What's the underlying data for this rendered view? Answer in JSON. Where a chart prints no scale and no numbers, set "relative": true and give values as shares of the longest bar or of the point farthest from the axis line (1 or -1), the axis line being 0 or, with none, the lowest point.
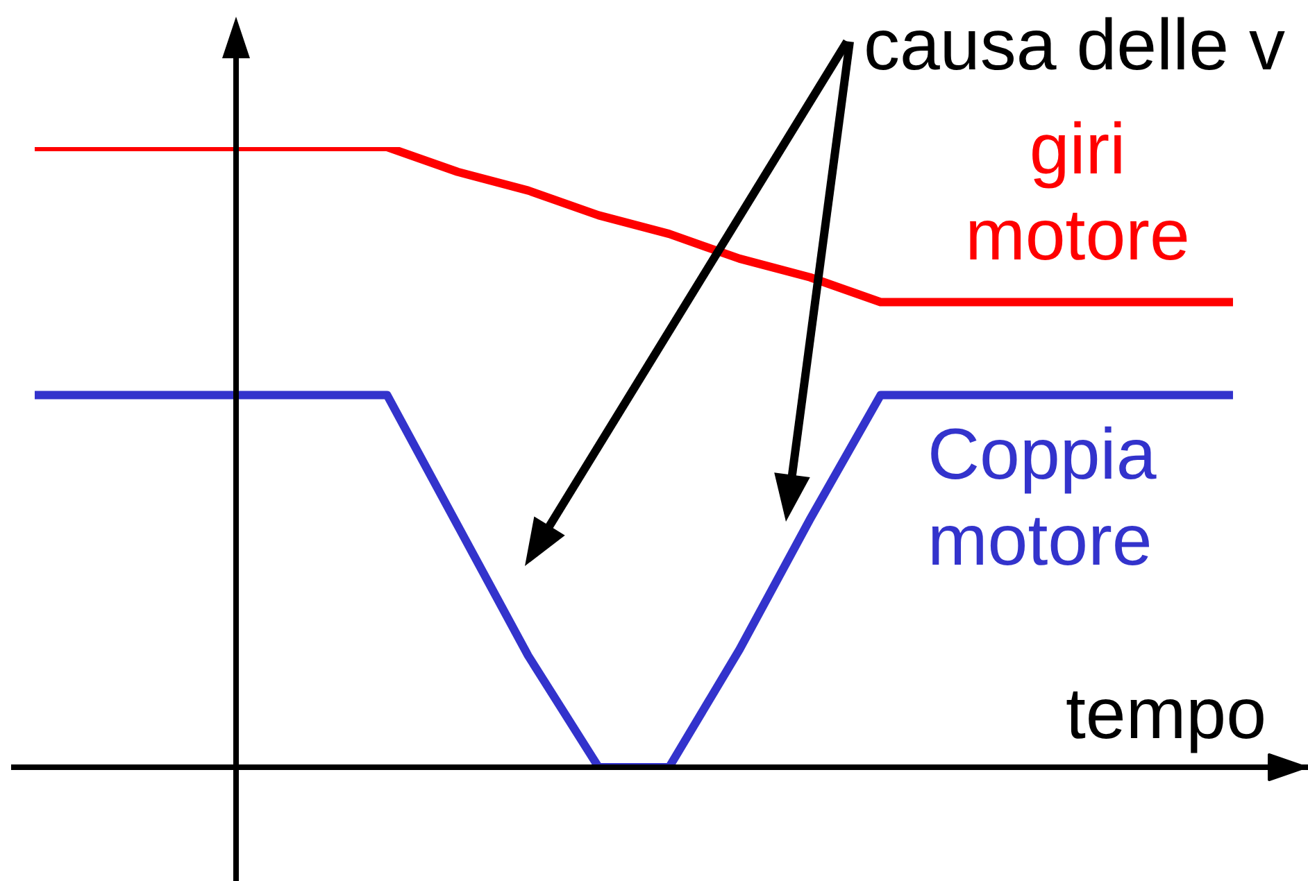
{
  "chart_data": {
    "type": "line",
    "xlabel": "tempo",
    "annotations": [
      "causa delle v"
    ],
    "relative": true,
    "line_style": "solid",
    "categories": [
      null,
      null,
      null,
      null,
      null,
      null,
      null,
      null,
      null,
      null,
      null,
      null,
      null,
      null,
      null,
      null,
      null,
      null
    ],
    "series": [
      {
        "name": "giri motore",
        "color": "#ff0000",
        "values": [
          1,
          1,
          1,
          1,
          1,
          1,
          0.96,
          0.93,
          0.89,
          0.86,
          0.82,
          0.79,
          0.75,
          0.75,
          0.75,
          0.75,
          0.75,
          0.75
        ]
      },
      {
        "name": "Coppia motore",
        "color": "#3333cc",
        "values": [
          0.6,
          0.6,
          0.6,
          0.6,
          0.6,
          0.6,
          0.39,
          0.18,
          0,
          0,
          0.19,
          0.4,
          0.6,
          0.6,
          0.6,
          0.6,
          0.6,
          0.6
        ]
      }
    ]
  }
}
